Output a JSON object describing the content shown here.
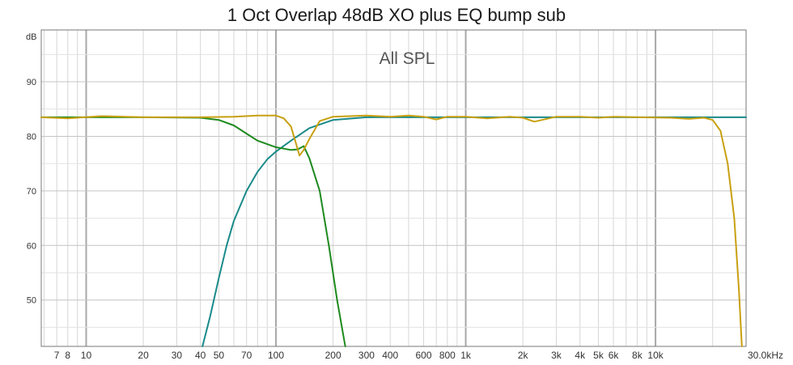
{
  "chart_data": {
    "type": "line",
    "title": "1 Oct Overlap 48dB XO plus EQ bump sub",
    "subtitle": "All SPL",
    "ylabel": "dB",
    "xunit_label": "30.0kHz",
    "x_scale": "log",
    "xlim": [
      5.8,
      30000
    ],
    "ylim": [
      41.5,
      99.5
    ],
    "grid": true,
    "x_ticks": [
      {
        "value": 7,
        "label": "7"
      },
      {
        "value": 8,
        "label": "8"
      },
      {
        "value": 10,
        "label": "10"
      },
      {
        "value": 20,
        "label": "20"
      },
      {
        "value": 30,
        "label": "30"
      },
      {
        "value": 40,
        "label": "40"
      },
      {
        "value": 50,
        "label": "50"
      },
      {
        "value": 70,
        "label": "70"
      },
      {
        "value": 100,
        "label": "100"
      },
      {
        "value": 200,
        "label": "200"
      },
      {
        "value": 300,
        "label": "300"
      },
      {
        "value": 400,
        "label": "400"
      },
      {
        "value": 600,
        "label": "600"
      },
      {
        "value": 800,
        "label": "800"
      },
      {
        "value": 1000,
        "label": "1k"
      },
      {
        "value": 2000,
        "label": "2k"
      },
      {
        "value": 3000,
        "label": "3k"
      },
      {
        "value": 4000,
        "label": "4k"
      },
      {
        "value": 5000,
        "label": "5k"
      },
      {
        "value": 6000,
        "label": "6k"
      },
      {
        "value": 8000,
        "label": "8k"
      },
      {
        "value": 10000,
        "label": "10k"
      }
    ],
    "y_ticks": [
      {
        "value": 50,
        "label": "50"
      },
      {
        "value": 60,
        "label": "60"
      },
      {
        "value": 70,
        "label": "70"
      },
      {
        "value": 80,
        "label": "80"
      },
      {
        "value": 90,
        "label": "90"
      }
    ],
    "series": [
      {
        "color": "#1a8a8a",
        "points": [
          [
            41,
            41.5
          ],
          [
            45,
            47
          ],
          [
            50,
            54
          ],
          [
            55,
            60
          ],
          [
            60,
            64.5
          ],
          [
            70,
            70
          ],
          [
            80,
            73.5
          ],
          [
            90,
            75.8
          ],
          [
            100,
            77.2
          ],
          [
            120,
            79.2
          ],
          [
            150,
            81.5
          ],
          [
            200,
            83
          ],
          [
            300,
            83.5
          ],
          [
            1000,
            83.5
          ],
          [
            30000,
            83.5
          ]
        ]
      },
      {
        "color": "#1e8a1e",
        "points": [
          [
            5.8,
            83.5
          ],
          [
            20,
            83.5
          ],
          [
            40,
            83.4
          ],
          [
            50,
            83
          ],
          [
            60,
            82
          ],
          [
            70,
            80.5
          ],
          [
            80,
            79.2
          ],
          [
            100,
            78
          ],
          [
            120,
            77.5
          ],
          [
            130,
            77.6
          ],
          [
            140,
            78.2
          ],
          [
            150,
            76
          ],
          [
            170,
            70
          ],
          [
            190,
            60
          ],
          [
            210,
            50
          ],
          [
            232,
            41.5
          ]
        ]
      },
      {
        "color": "#c8a010",
        "points": [
          [
            5.8,
            83.5
          ],
          [
            8,
            83.3
          ],
          [
            12,
            83.7
          ],
          [
            20,
            83.5
          ],
          [
            40,
            83.5
          ],
          [
            60,
            83.6
          ],
          [
            80,
            83.8
          ],
          [
            100,
            83.8
          ],
          [
            110,
            83.3
          ],
          [
            120,
            81.8
          ],
          [
            128,
            78.5
          ],
          [
            133,
            76.5
          ],
          [
            140,
            77.5
          ],
          [
            150,
            79.5
          ],
          [
            170,
            82.8
          ],
          [
            200,
            83.6
          ],
          [
            300,
            83.8
          ],
          [
            400,
            83.6
          ],
          [
            500,
            83.8
          ],
          [
            600,
            83.6
          ],
          [
            700,
            83.1
          ],
          [
            800,
            83.6
          ],
          [
            1000,
            83.6
          ],
          [
            1300,
            83.3
          ],
          [
            1700,
            83.6
          ],
          [
            2000,
            83.4
          ],
          [
            2300,
            82.7
          ],
          [
            3000,
            83.6
          ],
          [
            4000,
            83.6
          ],
          [
            5000,
            83.4
          ],
          [
            6000,
            83.6
          ],
          [
            8000,
            83.5
          ],
          [
            12000,
            83.4
          ],
          [
            15000,
            83.2
          ],
          [
            18000,
            83.4
          ],
          [
            20000,
            83
          ],
          [
            22000,
            81
          ],
          [
            24000,
            75
          ],
          [
            26000,
            65
          ],
          [
            27500,
            52
          ],
          [
            28500,
            41.5
          ]
        ]
      }
    ]
  }
}
